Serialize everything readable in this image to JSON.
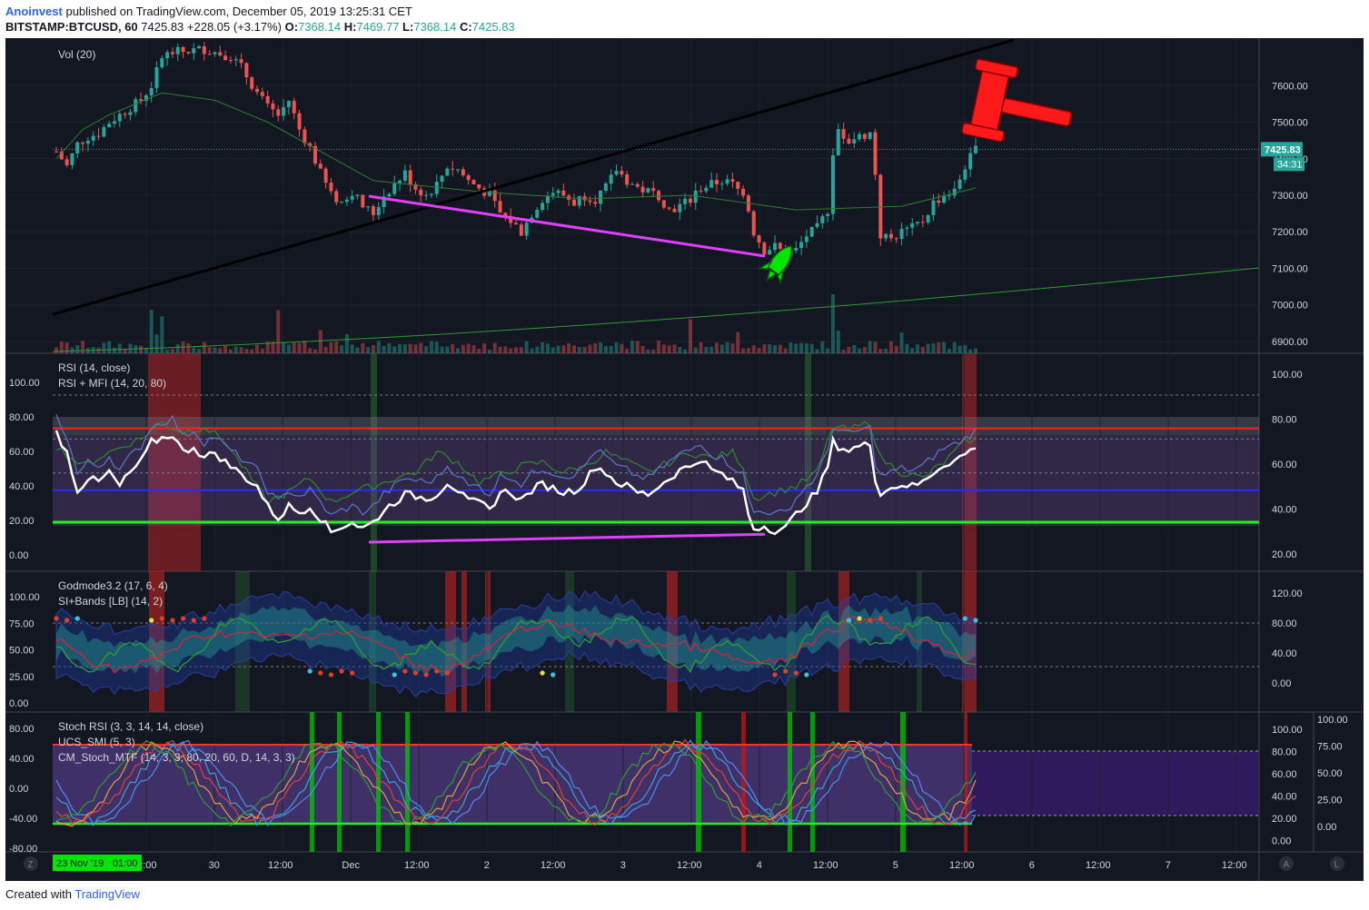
{
  "header": {
    "author": "Anoinvest",
    "published": "published on TradingView.com, December 05, 2019 13:25:31 CET",
    "symbol": "BITSTAMP:BTCUSD, 60",
    "last": "7425.83",
    "change": "+228.05 (+3.17%)",
    "o_label": "O:",
    "o": "7368.14",
    "h_label": "H:",
    "h": "7469.77",
    "l_label": "L:",
    "l": "7368.14",
    "c_label": "C:",
    "c": "7425.83"
  },
  "footer": {
    "created": "Created with",
    "brand": "TradingView"
  },
  "colors": {
    "bg": "#131722",
    "up": "#26a69a",
    "down": "#ef5350",
    "magenta": "#e040fb",
    "green": "#00e600",
    "red": "#ff1a1a"
  },
  "chart_data": [
    {
      "type": "candlestick",
      "pane": "price",
      "indicator_label": "Vol (20)",
      "ylim": [
        6880,
        7720
      ],
      "price_ticks": [
        "7600.00",
        "7500.00",
        "7400.00",
        "7300.00",
        "7200.00",
        "7100.00",
        "7000.00",
        "6900.00"
      ],
      "last_price_tag": "7425.83",
      "countdown_tag": "34:31",
      "close_path": [
        [
          0,
          7420
        ],
        [
          2,
          7380
        ],
        [
          4,
          7440
        ],
        [
          6,
          7460
        ],
        [
          8,
          7470
        ],
        [
          10,
          7500
        ],
        [
          12,
          7520
        ],
        [
          14,
          7540
        ],
        [
          16,
          7560
        ],
        [
          18,
          7600
        ],
        [
          20,
          7680
        ],
        [
          22,
          7690
        ],
        [
          28,
          7700
        ],
        [
          33,
          7680
        ],
        [
          35,
          7650
        ],
        [
          38,
          7580
        ],
        [
          40,
          7540
        ],
        [
          42,
          7520
        ],
        [
          44,
          7560
        ],
        [
          46,
          7480
        ],
        [
          48,
          7430
        ],
        [
          50,
          7360
        ],
        [
          52,
          7300
        ],
        [
          54,
          7280
        ],
        [
          56,
          7310
        ],
        [
          58,
          7270
        ],
        [
          60,
          7250
        ],
        [
          62,
          7300
        ],
        [
          64,
          7330
        ],
        [
          66,
          7360
        ],
        [
          68,
          7320
        ],
        [
          70,
          7300
        ],
        [
          72,
          7330
        ],
        [
          74,
          7380
        ],
        [
          76,
          7370
        ],
        [
          78,
          7340
        ],
        [
          80,
          7320
        ],
        [
          82,
          7300
        ],
        [
          84,
          7250
        ],
        [
          86,
          7230
        ],
        [
          88,
          7200
        ],
        [
          90,
          7250
        ],
        [
          92,
          7290
        ],
        [
          94,
          7310
        ],
        [
          96,
          7300
        ],
        [
          98,
          7280
        ],
        [
          100,
          7300
        ],
        [
          102,
          7290
        ],
        [
          104,
          7320
        ],
        [
          106,
          7370
        ],
        [
          108,
          7340
        ],
        [
          110,
          7320
        ],
        [
          112,
          7310
        ],
        [
          114,
          7300
        ],
        [
          116,
          7260
        ],
        [
          118,
          7270
        ],
        [
          120,
          7290
        ],
        [
          122,
          7320
        ],
        [
          124,
          7330
        ],
        [
          126,
          7340
        ],
        [
          128,
          7330
        ],
        [
          130,
          7300
        ],
        [
          131,
          7260
        ],
        [
          132,
          7200
        ],
        [
          134,
          7150
        ],
        [
          136,
          7160
        ],
        [
          138,
          7140
        ],
        [
          140,
          7150
        ],
        [
          142,
          7190
        ],
        [
          144,
          7210
        ],
        [
          146,
          7260
        ],
        [
          147,
          7420
        ],
        [
          148,
          7480
        ],
        [
          150,
          7450
        ],
        [
          152,
          7460
        ],
        [
          154,
          7470
        ],
        [
          155,
          7360
        ],
        [
          156,
          7190
        ],
        [
          158,
          7180
        ],
        [
          160,
          7200
        ],
        [
          162,
          7210
        ],
        [
          164,
          7230
        ],
        [
          166,
          7280
        ],
        [
          168,
          7300
        ],
        [
          170,
          7310
        ],
        [
          172,
          7380
        ],
        [
          174,
          7425.83
        ]
      ],
      "sma_path": [
        [
          0,
          7400
        ],
        [
          5,
          7480
        ],
        [
          10,
          7520
        ],
        [
          20,
          7580
        ],
        [
          30,
          7560
        ],
        [
          40,
          7500
        ],
        [
          50,
          7420
        ],
        [
          60,
          7340
        ],
        [
          80,
          7310
        ],
        [
          100,
          7290
        ],
        [
          120,
          7300
        ],
        [
          140,
          7260
        ],
        [
          160,
          7270
        ],
        [
          174,
          7320
        ]
      ]
    },
    {
      "type": "line",
      "pane": "rsi",
      "labels": [
        "RSI (14, close)",
        "RSI + MFI (14, 20, 80)"
      ],
      "left_ticks": [
        "100.00",
        "80.00",
        "60.00",
        "40.00",
        "20.00",
        "0.00"
      ],
      "right_ticks": [
        "100.00",
        "80.00",
        "60.00",
        "40.00",
        "20.00"
      ],
      "rsi": [
        [
          0,
          65
        ],
        [
          2,
          55
        ],
        [
          4,
          36
        ],
        [
          6,
          42
        ],
        [
          8,
          40
        ],
        [
          10,
          45
        ],
        [
          12,
          38
        ],
        [
          14,
          45
        ],
        [
          16,
          50
        ],
        [
          18,
          60
        ],
        [
          20,
          62
        ],
        [
          22,
          64
        ],
        [
          24,
          55
        ],
        [
          26,
          58
        ],
        [
          28,
          52
        ],
        [
          30,
          55
        ],
        [
          32,
          50
        ],
        [
          34,
          46
        ],
        [
          36,
          42
        ],
        [
          38,
          38
        ],
        [
          40,
          28
        ],
        [
          42,
          22
        ],
        [
          44,
          28
        ],
        [
          46,
          25
        ],
        [
          48,
          28
        ],
        [
          50,
          22
        ],
        [
          52,
          15
        ],
        [
          54,
          18
        ],
        [
          56,
          20
        ],
        [
          58,
          17
        ],
        [
          60,
          20
        ],
        [
          62,
          26
        ],
        [
          64,
          30
        ],
        [
          66,
          34
        ],
        [
          68,
          33
        ],
        [
          70,
          32
        ],
        [
          72,
          34
        ],
        [
          74,
          40
        ],
        [
          76,
          36
        ],
        [
          78,
          30
        ],
        [
          80,
          30
        ],
        [
          82,
          26
        ],
        [
          84,
          35
        ],
        [
          86,
          35
        ],
        [
          88,
          31
        ],
        [
          90,
          36
        ],
        [
          92,
          39
        ],
        [
          94,
          37
        ],
        [
          96,
          35
        ],
        [
          98,
          36
        ],
        [
          100,
          40
        ],
        [
          102,
          48
        ],
        [
          104,
          45
        ],
        [
          106,
          40
        ],
        [
          108,
          38
        ],
        [
          110,
          35
        ],
        [
          112,
          34
        ],
        [
          114,
          38
        ],
        [
          116,
          42
        ],
        [
          118,
          46
        ],
        [
          120,
          48
        ],
        [
          122,
          52
        ],
        [
          124,
          46
        ],
        [
          126,
          44
        ],
        [
          128,
          40
        ],
        [
          130,
          36
        ],
        [
          131,
          24
        ],
        [
          132,
          17
        ],
        [
          134,
          18
        ],
        [
          136,
          16
        ],
        [
          138,
          17
        ],
        [
          140,
          24
        ],
        [
          142,
          30
        ],
        [
          144,
          35
        ],
        [
          146,
          48
        ],
        [
          147,
          60
        ],
        [
          148,
          58
        ],
        [
          150,
          56
        ],
        [
          152,
          58
        ],
        [
          154,
          59
        ],
        [
          155,
          42
        ],
        [
          156,
          35
        ],
        [
          158,
          37
        ],
        [
          160,
          39
        ],
        [
          162,
          38
        ],
        [
          164,
          40
        ],
        [
          166,
          45
        ],
        [
          168,
          49
        ],
        [
          170,
          51
        ],
        [
          172,
          54
        ],
        [
          174,
          58
        ]
      ],
      "mfi": [
        [
          0,
          58
        ],
        [
          5,
          48
        ],
        [
          10,
          55
        ],
        [
          16,
          62
        ],
        [
          20,
          70
        ],
        [
          24,
          65
        ],
        [
          28,
          68
        ],
        [
          32,
          60
        ],
        [
          36,
          45
        ],
        [
          40,
          30
        ],
        [
          44,
          35
        ],
        [
          48,
          42
        ],
        [
          52,
          30
        ],
        [
          56,
          35
        ],
        [
          60,
          38
        ],
        [
          64,
          42
        ],
        [
          68,
          45
        ],
        [
          72,
          55
        ],
        [
          76,
          50
        ],
        [
          80,
          40
        ],
        [
          84,
          44
        ],
        [
          88,
          48
        ],
        [
          92,
          50
        ],
        [
          96,
          45
        ],
        [
          100,
          48
        ],
        [
          104,
          55
        ],
        [
          108,
          50
        ],
        [
          112,
          45
        ],
        [
          116,
          50
        ],
        [
          120,
          55
        ],
        [
          124,
          52
        ],
        [
          128,
          55
        ],
        [
          130,
          48
        ],
        [
          132,
          32
        ],
        [
          136,
          35
        ],
        [
          140,
          38
        ],
        [
          144,
          45
        ],
        [
          147,
          68
        ],
        [
          150,
          66
        ],
        [
          154,
          70
        ],
        [
          156,
          52
        ],
        [
          160,
          45
        ],
        [
          164,
          42
        ],
        [
          168,
          50
        ],
        [
          172,
          60
        ],
        [
          174,
          62
        ]
      ],
      "band_lines": {
        "red": 67,
        "blue": 36,
        "green": 20
      }
    },
    {
      "type": "line",
      "pane": "godmode",
      "labels": [
        "Godmode3.2 (17, 6, 4)",
        "SI+Bands [LB] (14, 2)"
      ],
      "left_ticks": [
        "100.00",
        "75.00",
        "50.00",
        "25.00",
        "0.00"
      ],
      "right_ticks": [
        "120.00",
        "80.00",
        "40.00",
        "0.00"
      ]
    },
    {
      "type": "line",
      "pane": "stoch",
      "labels": [
        "Stoch RSI (3, 3, 14, 14, close)",
        "UCS_SMI (5, 3)",
        "CM_Stoch_MTF (14, 3, 3, 80, 20, 60, D, 14, 3, 3)"
      ],
      "left_ticks": [
        "80.00",
        "40.00",
        "0.00",
        "-40.00",
        "-80.00"
      ],
      "right_ticks": [
        "100.00",
        "80.00",
        "60.00",
        "40.00",
        "20.00",
        "0.00"
      ],
      "far_right_ticks": [
        "100.00",
        "75.00",
        "50.00",
        "25.00",
        "0.00"
      ]
    }
  ],
  "time_axis": {
    "labels": [
      "12:00",
      "30",
      "12:00",
      "Dec",
      "12:00",
      "2",
      "12:00",
      "3",
      "12:00",
      "4",
      "12:00",
      "5",
      "12:00",
      "6",
      "12:00",
      "7",
      "12:00"
    ],
    "cursor_date": "23 Nov '19",
    "cursor_time": "01:00",
    "left_button": "Z",
    "right_button_a": "A",
    "right_button_l": "L"
  }
}
